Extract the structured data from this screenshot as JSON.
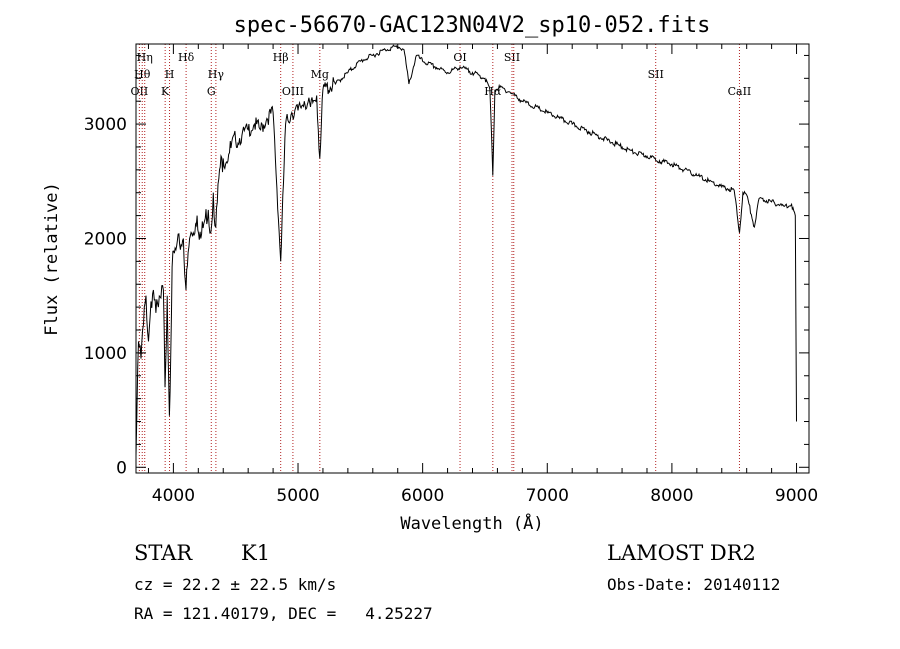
{
  "chart_data": {
    "type": "line",
    "title": "spec-56670-GAC123N04V2_sp10-052.fits",
    "xlabel": "Wavelength (Å)",
    "ylabel": "Flux (relative)",
    "xlim": [
      3700,
      9100
    ],
    "ylim": [
      -50,
      3700
    ],
    "xticks": [
      4000,
      5000,
      6000,
      7000,
      8000,
      9000
    ],
    "yticks": [
      0,
      1000,
      2000,
      3000
    ],
    "line_color": "#000000",
    "marker_color": "#b22222",
    "series": [
      {
        "x": [
          3700,
          3720,
          3740,
          3760,
          3780,
          3800,
          3820,
          3840,
          3860,
          3880,
          3900,
          3920,
          3933,
          3950,
          3968,
          3990,
          4020,
          4050,
          4080,
          4101,
          4130,
          4160,
          4190,
          4220,
          4250,
          4280,
          4300,
          4320,
          4340,
          4370,
          4400,
          4450,
          4500,
          4550,
          4600,
          4650,
          4700,
          4750,
          4800,
          4861,
          4900,
          4950,
          5000,
          5050,
          5100,
          5150,
          5175,
          5200,
          5300,
          5400,
          5500,
          5600,
          5700,
          5800,
          5850,
          5890,
          5950,
          6000,
          6100,
          6200,
          6300,
          6400,
          6500,
          6540,
          6563,
          6580,
          6620,
          6700,
          6800,
          6900,
          7000,
          7100,
          7200,
          7300,
          7400,
          7500,
          7600,
          7700,
          7800,
          7900,
          8000,
          8100,
          8200,
          8300,
          8400,
          8500,
          8542,
          8570,
          8600,
          8662,
          8700,
          8800,
          8900,
          8960,
          8990,
          9000
        ],
        "y": [
          100,
          1100,
          950,
          1250,
          1500,
          1100,
          1450,
          1550,
          1350,
          1400,
          1480,
          1550,
          700,
          1500,
          450,
          1750,
          1900,
          1950,
          2000,
          1550,
          2000,
          2050,
          2200,
          2000,
          2150,
          2250,
          2050,
          2400,
          2100,
          2600,
          2700,
          2750,
          2850,
          2900,
          2950,
          3000,
          2950,
          3050,
          3100,
          1800,
          3000,
          3100,
          3120,
          3200,
          3150,
          3250,
          2700,
          3300,
          3350,
          3450,
          3550,
          3600,
          3650,
          3680,
          3650,
          3350,
          3600,
          3550,
          3500,
          3450,
          3500,
          3450,
          3400,
          3300,
          2550,
          3300,
          3320,
          3280,
          3200,
          3150,
          3100,
          3050,
          3000,
          2950,
          2900,
          2850,
          2800,
          2750,
          2720,
          2680,
          2650,
          2600,
          2550,
          2500,
          2450,
          2420,
          2050,
          2400,
          2380,
          2100,
          2350,
          2320,
          2280,
          2300,
          2200,
          400
        ]
      }
    ],
    "lines": [
      {
        "x": 3727,
        "label": "OII",
        "row": 3
      },
      {
        "x": 3750,
        "label": "Hθ",
        "row": 2
      },
      {
        "x": 3770,
        "label": "Hη",
        "row": 1
      },
      {
        "x": 3934,
        "label": "K",
        "row": 3
      },
      {
        "x": 3969,
        "label": "H",
        "row": 2
      },
      {
        "x": 4102,
        "label": "Hδ",
        "row": 1
      },
      {
        "x": 4304,
        "label": "G",
        "row": 3
      },
      {
        "x": 4341,
        "label": "Hγ",
        "row": 2
      },
      {
        "x": 4861,
        "label": "Hβ",
        "row": 1
      },
      {
        "x": 4959,
        "label": "OIII",
        "row": 3
      },
      {
        "x": 5175,
        "label": "Mg",
        "row": 2
      },
      {
        "x": 6300,
        "label": "OI",
        "row": 1
      },
      {
        "x": 6563,
        "label": "Hα",
        "row": 3
      },
      {
        "x": 6717,
        "label": "SII",
        "row": 1
      },
      {
        "x": 6731,
        "label": "",
        "row": 1
      },
      {
        "x": 7870,
        "label": "SII",
        "row": 2
      },
      {
        "x": 8542,
        "label": "CaII",
        "row": 3
      }
    ]
  },
  "info": {
    "object_class": "STAR",
    "subclass": "K1",
    "survey": "LAMOST DR2",
    "redshift": "cz = 22.2 ± 22.5 km/s",
    "obs_date": "Obs-Date: 20140112",
    "coords": "RA = 121.40179, DEC =   4.25227"
  }
}
